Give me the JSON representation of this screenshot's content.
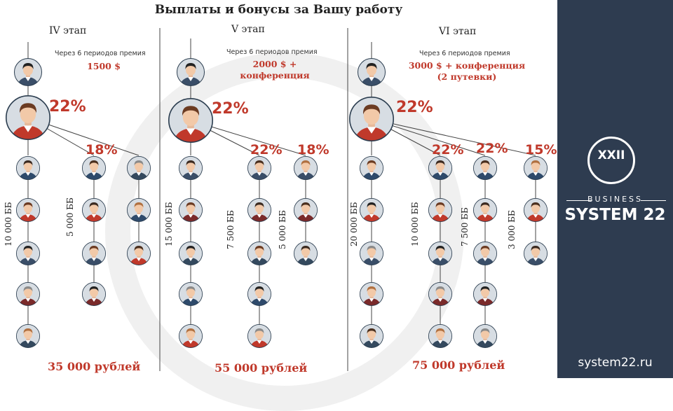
{
  "header": {
    "title": "Выплаты и бонусы за Вашу работу"
  },
  "stages": [
    {
      "label": "IV этап",
      "note": "Через 6 периодов премия",
      "prize": "1500 $",
      "main_pct": "22%",
      "branch_pcts": [
        "18%"
      ],
      "bb_labels": [
        "10 000 ББ",
        "5 000 ББ"
      ],
      "total": "35 000 рублей"
    },
    {
      "label": "V этап",
      "note": "Через 6 периодов премия",
      "prize": "2000 $ + конференция",
      "main_pct": "22%",
      "branch_pcts": [
        "22%",
        "18%"
      ],
      "bb_labels": [
        "15 000 ББ",
        "7 500 ББ",
        "5 000 ББ"
      ],
      "total": "55 000 рублей"
    },
    {
      "label": "VI этап",
      "note": "Через 6 периодов премия",
      "prize": "3000 $ + конференция (2 путевки)",
      "main_pct": "22%",
      "branch_pcts": [
        "22%",
        "22%",
        "15%"
      ],
      "bb_labels": [
        "20 000 ББ",
        "10 000 ББ",
        "7 500 ББ",
        "3 000 ББ"
      ],
      "total": "75 000 рублей"
    }
  ],
  "brand": {
    "mark": "ХХII",
    "sub": "BUSINESS",
    "name": "SYSTEM 22",
    "site": "system22.ru",
    "panel_color": "#2e3c50"
  },
  "colors": {
    "accent": "#c0392b"
  }
}
